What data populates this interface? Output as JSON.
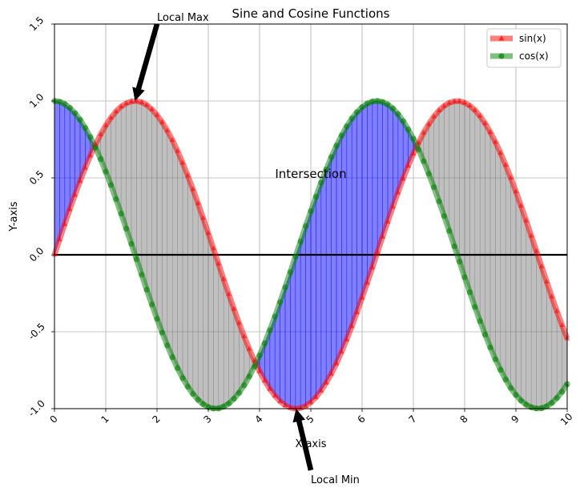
{
  "chart_data": {
    "type": "line",
    "title": "Sine and Cosine Functions",
    "xlabel": "X-axis",
    "ylabel": "Y-axis",
    "xlim": [
      0,
      10
    ],
    "ylim": [
      -1.0,
      1.5
    ],
    "xticks": [
      0,
      1,
      2,
      3,
      4,
      5,
      6,
      7,
      8,
      9,
      10
    ],
    "xtick_labels": [
      "0",
      "1",
      "2",
      "3",
      "4",
      "5",
      "6",
      "7",
      "8",
      "9",
      "10"
    ],
    "yticks": [
      -1.0,
      -0.5,
      0.0,
      0.5,
      1.0,
      1.5
    ],
    "ytick_labels": [
      "-1.0",
      "-0.5",
      "0.0",
      "0.5",
      "1.0",
      "1.5"
    ],
    "grid": true,
    "legend_position": "top-right",
    "horizontal_line": 0,
    "fill_between": {
      "sin_above_cos_color": "#808080",
      "cos_above_sin_color": "#0000ff"
    },
    "series": [
      {
        "name": "sin(x)",
        "color": "#ff0000",
        "marker": "triangle",
        "x": [
          0.0,
          0.1,
          0.2,
          0.3,
          0.4,
          0.5,
          0.6,
          0.7,
          0.8,
          0.9,
          1.0,
          1.1,
          1.2,
          1.3,
          1.4,
          1.5,
          1.6,
          1.7,
          1.8,
          1.9,
          2.0,
          2.1,
          2.2,
          2.3,
          2.4,
          2.5,
          2.6,
          2.7,
          2.8,
          2.9,
          3.0,
          3.1,
          3.2,
          3.3,
          3.4,
          3.5,
          3.6,
          3.7,
          3.8,
          3.9,
          4.0,
          4.1,
          4.2,
          4.3,
          4.4,
          4.5,
          4.6,
          4.7,
          4.8,
          4.9,
          5.0,
          5.1,
          5.2,
          5.3,
          5.4,
          5.5,
          5.6,
          5.7,
          5.8,
          5.9,
          6.0,
          6.1,
          6.2,
          6.3,
          6.4,
          6.5,
          6.6,
          6.7,
          6.8,
          6.9,
          7.0,
          7.1,
          7.2,
          7.3,
          7.4,
          7.5,
          7.6,
          7.7,
          7.8,
          7.9,
          8.0,
          8.1,
          8.2,
          8.3,
          8.4,
          8.5,
          8.6,
          8.7,
          8.8,
          8.9,
          9.0,
          9.1,
          9.2,
          9.3,
          9.4,
          9.5,
          9.6,
          9.7,
          9.8,
          9.9,
          10.0
        ],
        "y": [
          0.0,
          0.1,
          0.199,
          0.296,
          0.389,
          0.479,
          0.565,
          0.644,
          0.717,
          0.783,
          0.841,
          0.891,
          0.932,
          0.964,
          0.985,
          0.997,
          1.0,
          0.992,
          0.974,
          0.946,
          0.909,
          0.863,
          0.808,
          0.746,
          0.675,
          0.598,
          0.516,
          0.427,
          0.335,
          0.239,
          0.141,
          0.042,
          -0.058,
          -0.158,
          -0.256,
          -0.351,
          -0.443,
          -0.53,
          -0.612,
          -0.688,
          -0.757,
          -0.818,
          -0.872,
          -0.916,
          -0.952,
          -0.978,
          -0.994,
          -1.0,
          -0.996,
          -0.982,
          -0.959,
          -0.926,
          -0.883,
          -0.832,
          -0.773,
          -0.706,
          -0.631,
          -0.551,
          -0.465,
          -0.374,
          -0.279,
          -0.182,
          -0.083,
          0.017,
          0.117,
          0.215,
          0.312,
          0.405,
          0.494,
          0.578,
          0.657,
          0.729,
          0.794,
          0.85,
          0.899,
          0.938,
          0.968,
          0.988,
          0.998,
          0.999,
          0.989,
          0.97,
          0.941,
          0.903,
          0.855,
          0.798,
          0.734,
          0.662,
          0.584,
          0.501,
          0.412,
          0.319,
          0.223,
          0.124,
          0.025,
          -0.075,
          -0.174,
          -0.272,
          -0.366,
          -0.457,
          -0.544
        ]
      },
      {
        "name": "cos(x)",
        "color": "#008000",
        "marker": "circle",
        "x": [
          0.0,
          0.1,
          0.2,
          0.3,
          0.4,
          0.5,
          0.6,
          0.7,
          0.8,
          0.9,
          1.0,
          1.1,
          1.2,
          1.3,
          1.4,
          1.5,
          1.6,
          1.7,
          1.8,
          1.9,
          2.0,
          2.1,
          2.2,
          2.3,
          2.4,
          2.5,
          2.6,
          2.7,
          2.8,
          2.9,
          3.0,
          3.1,
          3.2,
          3.3,
          3.4,
          3.5,
          3.6,
          3.7,
          3.8,
          3.9,
          4.0,
          4.1,
          4.2,
          4.3,
          4.4,
          4.5,
          4.6,
          4.7,
          4.8,
          4.9,
          5.0,
          5.1,
          5.2,
          5.3,
          5.4,
          5.5,
          5.6,
          5.7,
          5.8,
          5.9,
          6.0,
          6.1,
          6.2,
          6.3,
          6.4,
          6.5,
          6.6,
          6.7,
          6.8,
          6.9,
          7.0,
          7.1,
          7.2,
          7.3,
          7.4,
          7.5,
          7.6,
          7.7,
          7.8,
          7.9,
          8.0,
          8.1,
          8.2,
          8.3,
          8.4,
          8.5,
          8.6,
          8.7,
          8.8,
          8.9,
          9.0,
          9.1,
          9.2,
          9.3,
          9.4,
          9.5,
          9.6,
          9.7,
          9.8,
          9.9,
          10.0
        ],
        "y": [
          1.0,
          0.995,
          0.98,
          0.955,
          0.921,
          0.878,
          0.825,
          0.765,
          0.697,
          0.622,
          0.54,
          0.454,
          0.362,
          0.267,
          0.17,
          0.071,
          -0.029,
          -0.129,
          -0.227,
          -0.323,
          -0.416,
          -0.505,
          -0.589,
          -0.666,
          -0.737,
          -0.801,
          -0.857,
          -0.904,
          -0.942,
          -0.971,
          -0.99,
          -0.999,
          -0.998,
          -0.987,
          -0.967,
          -0.936,
          -0.897,
          -0.848,
          -0.791,
          -0.726,
          -0.654,
          -0.575,
          -0.49,
          -0.401,
          -0.307,
          -0.211,
          -0.112,
          -0.012,
          0.087,
          0.187,
          0.284,
          0.378,
          0.469,
          0.554,
          0.635,
          0.709,
          0.776,
          0.835,
          0.886,
          0.927,
          0.96,
          0.983,
          0.996,
          1.0,
          0.993,
          0.977,
          0.951,
          0.915,
          0.869,
          0.815,
          0.754,
          0.684,
          0.608,
          0.526,
          0.439,
          0.347,
          0.252,
          0.155,
          0.055,
          -0.045,
          -0.146,
          -0.243,
          -0.339,
          -0.431,
          -0.519,
          -0.602,
          -0.679,
          -0.748,
          -0.811,
          -0.866,
          -0.911,
          -0.948,
          -0.974,
          -0.991,
          -0.999,
          -0.997,
          -0.985,
          -0.963,
          -0.931,
          -0.89,
          -0.839
        ]
      }
    ],
    "annotations": [
      {
        "id": "local-max",
        "text": "Local Max",
        "point": [
          1.5708,
          1.0
        ],
        "text_pos": [
          2.0,
          1.5
        ],
        "arrow": true
      },
      {
        "id": "local-min",
        "text": "Local Min",
        "point": [
          4.7124,
          -1.0
        ],
        "text_pos": [
          5.0,
          -1.4
        ],
        "arrow": true
      },
      {
        "id": "intersection",
        "text": "Intersection",
        "point": [
          5.0,
          0.5
        ],
        "arrow": false
      }
    ]
  }
}
